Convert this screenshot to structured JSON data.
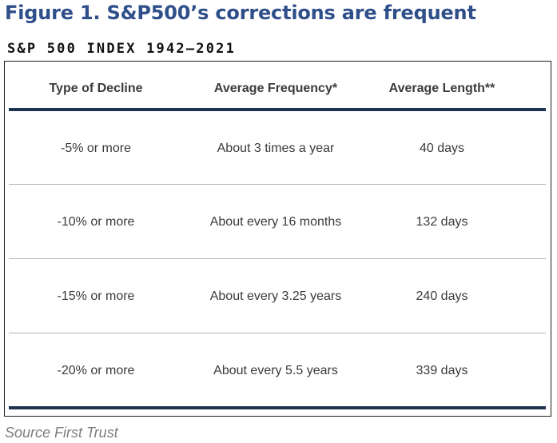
{
  "figure": {
    "title": "Figure 1. S&P500’s corrections are frequent"
  },
  "table": {
    "heading": "S&P 500 INDEX 1942–2021",
    "columns": [
      "Type of Decline",
      "Average Frequency*",
      "Average Length**"
    ],
    "rows": [
      [
        "-5% or more",
        "About 3 times a year",
        "40 days"
      ],
      [
        "-10% or more",
        "About every 16 months",
        "132 days"
      ],
      [
        "-15% or more",
        "About every 3.25 years",
        "240 days"
      ],
      [
        "-20% or more",
        "About every 5.5 years",
        "339 days"
      ]
    ]
  },
  "source": "Source First Trust",
  "colors": {
    "title": "#2f4f8a",
    "rule": "#1e3350",
    "divider": "#b7b7b7",
    "text": "#3a3a3a",
    "source": "#7d7d7d"
  }
}
